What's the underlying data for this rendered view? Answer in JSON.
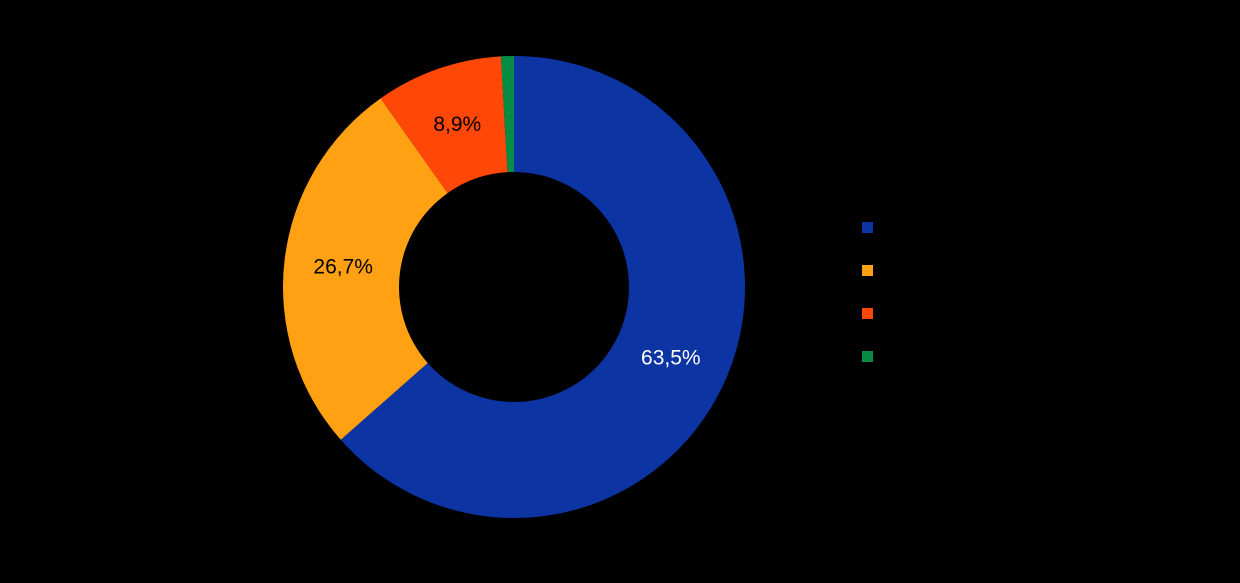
{
  "background_color": "#000000",
  "chart_data": {
    "type": "pie",
    "subtype": "donut",
    "title": "",
    "direction": "clockwise",
    "start_angle_deg": 0,
    "donut_hole_ratio": 0.5,
    "legend_position": "right",
    "slices": [
      {
        "value": 63.5,
        "display_label": "63,5%",
        "color": "#0C35A3",
        "label_color": "#FFFFFF"
      },
      {
        "value": 26.7,
        "display_label": "26,7%",
        "color": "#FFA113",
        "label_color": "#000000"
      },
      {
        "value": 8.9,
        "display_label": "8,9%",
        "color": "#FF4708",
        "label_color": "#000000"
      },
      {
        "value": 0.9,
        "display_label": "",
        "color": "#078C45",
        "label_color": "#000000"
      }
    ],
    "legend": [
      {
        "color": "#0C35A3",
        "label": ""
      },
      {
        "color": "#FFA113",
        "label": ""
      },
      {
        "color": "#FF4708",
        "label": ""
      },
      {
        "color": "#078C45",
        "label": ""
      }
    ]
  }
}
